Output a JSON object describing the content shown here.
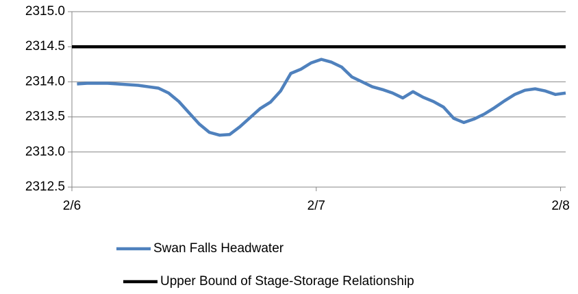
{
  "chart_data": {
    "type": "line",
    "xlim": [
      0,
      48.5
    ],
    "xticks": [
      {
        "value": 0,
        "label": "2/6"
      },
      {
        "value": 24,
        "label": "2/7"
      },
      {
        "value": 48,
        "label": "2/8"
      }
    ],
    "ylim": [
      2312.5,
      2315.0
    ],
    "yticks": [
      {
        "value": 2312.5,
        "label": "2312.5"
      },
      {
        "value": 2313.0,
        "label": "2313.0"
      },
      {
        "value": 2313.5,
        "label": "2313.5"
      },
      {
        "value": 2314.0,
        "label": "2314.0"
      },
      {
        "value": 2314.5,
        "label": "2314.5"
      },
      {
        "value": 2315.0,
        "label": "2315.0"
      }
    ],
    "grid": true,
    "legend": "bottom",
    "series": [
      {
        "name": "Swan Falls Headwater",
        "color": "#4f81bd",
        "x": [
          0.5,
          1.5,
          2.5,
          3.5,
          4.5,
          5.5,
          6.5,
          7.5,
          8.5,
          9.5,
          10.5,
          11.5,
          12.5,
          13.5,
          14.5,
          15.5,
          16.5,
          17.5,
          18.5,
          19.5,
          20.5,
          21.5,
          22.5,
          23.5,
          24.5,
          25.5,
          26.5,
          27.5,
          28.5,
          29.5,
          30.5,
          31.5,
          32.5,
          33.5,
          34.5,
          35.5,
          36.5,
          37.5,
          38.5,
          39.5,
          40.5,
          41.5,
          42.5,
          43.5,
          44.5,
          45.5,
          46.5,
          47.5,
          48.5
        ],
        "values": [
          2313.97,
          2313.98,
          2313.98,
          2313.98,
          2313.97,
          2313.96,
          2313.95,
          2313.93,
          2313.91,
          2313.84,
          2313.72,
          2313.56,
          2313.4,
          2313.28,
          2313.24,
          2313.25,
          2313.36,
          2313.49,
          2313.62,
          2313.71,
          2313.87,
          2314.12,
          2314.18,
          2314.27,
          2314.32,
          2314.28,
          2314.21,
          2314.07,
          2314.0,
          2313.93,
          2313.89,
          2313.84,
          2313.77,
          2313.86,
          2313.78,
          2313.72,
          2313.64,
          2313.48,
          2313.42,
          2313.47,
          2313.54,
          2313.63,
          2313.73,
          2313.82,
          2313.88,
          2313.9,
          2313.87,
          2313.82,
          2313.84
        ]
      },
      {
        "name": "Upper Bound of Stage-Storage Relationship",
        "color": "#000000",
        "x": [
          0,
          48.5
        ],
        "values": [
          2314.5,
          2314.5
        ]
      }
    ]
  }
}
